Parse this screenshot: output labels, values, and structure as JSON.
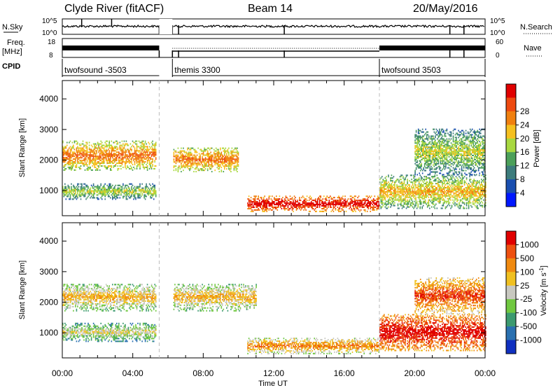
{
  "header": {
    "station": "Clyde River (fitACF)",
    "beam": "Beam 14",
    "date": "20/May/2016"
  },
  "strip_panels": {
    "nsky_label": "N.Sky",
    "nsky_ticks": [
      "10^5",
      "10^0"
    ],
    "nsearch_label": "N.Search",
    "nsearch_ticks": [
      "10^5",
      "10^0"
    ],
    "freq_label": "Freq.",
    "freq_unit": "[MHz]",
    "freq_ticks": [
      "18",
      "8"
    ],
    "nave_label": "Nave",
    "nave_ticks": [
      "60",
      "0"
    ],
    "cpid_label": "CPID",
    "cpid_segments": [
      {
        "name": "twofsound -3503",
        "start_h": 0.0,
        "end_h": 5.5
      },
      {
        "name": "themis 3300",
        "start_h": 6.25,
        "end_h": 18.0
      },
      {
        "name": "twofsound 3503",
        "start_h": 18.0,
        "end_h": 24.0
      }
    ]
  },
  "chart_data": [
    {
      "type": "heatmap",
      "quantity": "power",
      "ylabel": "Slant Range [km]",
      "xlabel": "Time UT",
      "xlim": [
        0,
        24
      ],
      "ylim": [
        180,
        4600
      ],
      "xticks": [
        "00:00",
        "04:00",
        "08:00",
        "12:00",
        "16:00",
        "20:00",
        "00:00"
      ],
      "yticks": [
        1000,
        2000,
        3000,
        4000
      ],
      "data_gap_h": [
        5.5,
        6.25
      ],
      "colorbar": {
        "label": "Power [dB]",
        "ticks": [
          "4",
          "8",
          "12",
          "16",
          "20",
          "24",
          "28"
        ],
        "colors": [
          "#0018ff",
          "#1a4fb0",
          "#3d7c7c",
          "#4ca05a",
          "#a8d840",
          "#f5c020",
          "#f08010",
          "#ee4a10",
          "#e00000"
        ]
      },
      "scatter_regions": [
        {
          "t0": 0.0,
          "t1": 5.3,
          "r0": 1650,
          "r1": 2600,
          "level": 5
        },
        {
          "t0": 0.0,
          "t1": 5.3,
          "r0": 700,
          "r1": 1200,
          "level": 3
        },
        {
          "t0": 6.3,
          "t1": 10.0,
          "r0": 1600,
          "r1": 2400,
          "level": 5
        },
        {
          "t0": 10.5,
          "t1": 18.0,
          "r0": 300,
          "r1": 800,
          "level": 7
        },
        {
          "t0": 18.0,
          "t1": 24.0,
          "r0": 400,
          "r1": 1500,
          "level": 4
        },
        {
          "t0": 20.0,
          "t1": 24.0,
          "r0": 1500,
          "r1": 3000,
          "level": 3
        }
      ]
    },
    {
      "type": "heatmap",
      "quantity": "velocity",
      "ylabel": "Slant Range [km]",
      "xlabel": "Time UT",
      "xlim": [
        0,
        24
      ],
      "ylim": [
        180,
        4600
      ],
      "xticks": [
        "00:00",
        "04:00",
        "08:00",
        "12:00",
        "16:00",
        "20:00",
        "00:00"
      ],
      "yticks": [
        1000,
        2000,
        3000,
        4000
      ],
      "data_gap_h": [
        5.5,
        6.25
      ],
      "colorbar": {
        "label": "Velocity [m s^-1]",
        "ticks": [
          "1000",
          "500",
          "100",
          "25",
          "-25",
          "-100",
          "-500",
          "-1000"
        ],
        "colors": [
          "#1030c0",
          "#2a70b0",
          "#3c9a70",
          "#70c840",
          "#c8c8c0",
          "#f0c020",
          "#f08a10",
          "#ee5010",
          "#e00000"
        ]
      },
      "scatter_regions": [
        {
          "t0": 0.0,
          "t1": 5.3,
          "r0": 1700,
          "r1": 2600,
          "level": 4
        },
        {
          "t0": 0.0,
          "t1": 5.3,
          "r0": 700,
          "r1": 1300,
          "level": 3
        },
        {
          "t0": 6.3,
          "t1": 11.0,
          "r0": 1700,
          "r1": 2600,
          "level": 4
        },
        {
          "t0": 10.5,
          "t1": 18.0,
          "r0": 300,
          "r1": 800,
          "level": 5
        },
        {
          "t0": 18.0,
          "t1": 24.0,
          "r0": 400,
          "r1": 1600,
          "level": 7
        },
        {
          "t0": 20.0,
          "t1": 24.0,
          "r0": 1600,
          "r1": 2800,
          "level": 6
        }
      ]
    }
  ]
}
